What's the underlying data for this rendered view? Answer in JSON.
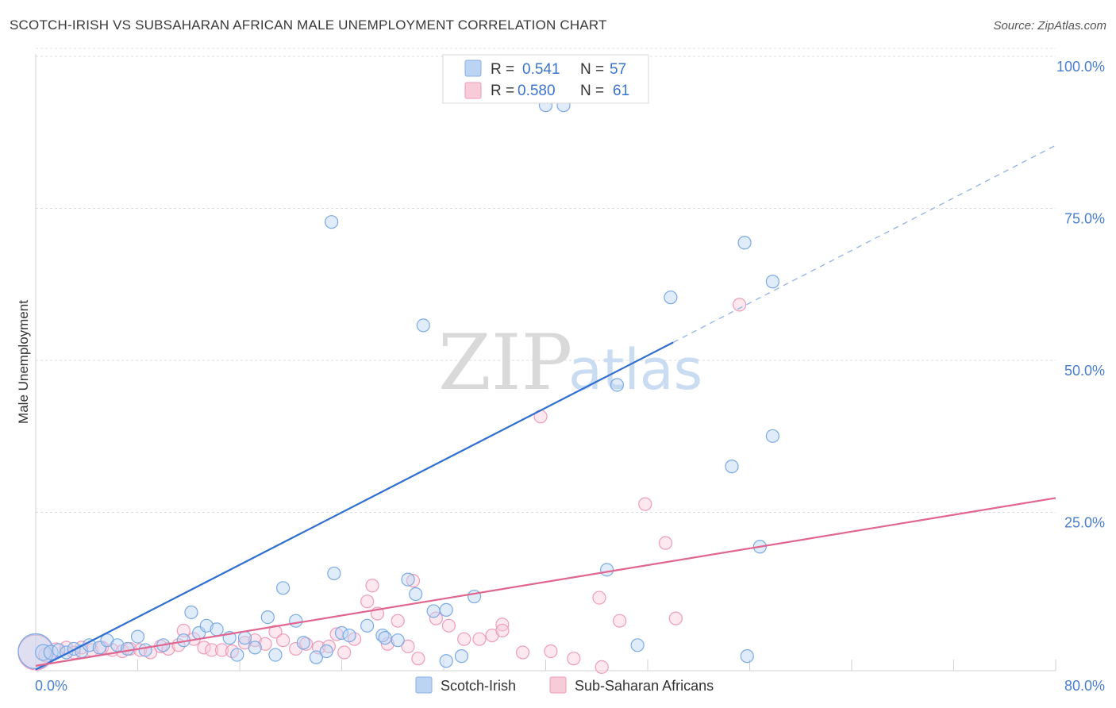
{
  "header": {
    "title": "SCOTCH-IRISH VS SUBSAHARAN AFRICAN MALE UNEMPLOYMENT CORRELATION CHART",
    "source": "Source: ZipAtlas.com"
  },
  "watermark": {
    "zip": "ZIP",
    "atlas": "atlas"
  },
  "legend": {
    "rows": [
      {
        "r_label": "R =",
        "r_value": "0.541",
        "n_label": "N =",
        "n_value": "57",
        "color": "#a9c8ef"
      },
      {
        "r_label": "R =",
        "r_value": "0.580",
        "n_label": "N =",
        "n_value": "61",
        "color": "#f5b8cb"
      }
    ]
  },
  "bottom_legend": [
    {
      "label": "Scotch-Irish",
      "color": "#a9c8ef"
    },
    {
      "label": "Sub-Saharan Africans",
      "color": "#f5b8cb"
    }
  ],
  "chart_data": {
    "type": "scatter",
    "title": "SCOTCH-IRISH VS SUBSAHARAN AFRICAN MALE UNEMPLOYMENT CORRELATION CHART",
    "xlabel": "",
    "ylabel": "Male Unemployment",
    "xlim": [
      0,
      80
    ],
    "ylim": [
      0,
      100
    ],
    "x_tick_labels": [
      "0.0%",
      "80.0%"
    ],
    "y_ticks": [
      25,
      50,
      75,
      100
    ],
    "y_tick_labels": [
      "25.0%",
      "50.0%",
      "75.0%",
      "100.0%"
    ],
    "grid": true,
    "series": [
      {
        "name": "Scotch-Irish",
        "color": "#7aaae6",
        "trend": {
          "x0": 0,
          "y0": 0.2,
          "x1": 50,
          "y1": 54.0,
          "dash_to_x": 80,
          "dash_to_y": 86.4
        },
        "points": [
          [
            0.0,
            3.2,
            22
          ],
          [
            0.6,
            3.0,
            10
          ],
          [
            1.2,
            3.0,
            9
          ],
          [
            1.8,
            3.4,
            8
          ],
          [
            2.4,
            3.0,
            8
          ],
          [
            3.0,
            3.6,
            8
          ],
          [
            3.6,
            3.2,
            8
          ],
          [
            4.2,
            4.2,
            8
          ],
          [
            5.0,
            3.8,
            8
          ],
          [
            5.6,
            5.0,
            8
          ],
          [
            6.4,
            4.2,
            8
          ],
          [
            7.2,
            3.6,
            8
          ],
          [
            8.0,
            5.6,
            8
          ],
          [
            8.6,
            3.4,
            8
          ],
          [
            10.0,
            4.2,
            8
          ],
          [
            11.6,
            5.0,
            8
          ],
          [
            12.2,
            9.6,
            8
          ],
          [
            12.8,
            6.2,
            8
          ],
          [
            13.4,
            7.4,
            8
          ],
          [
            14.2,
            6.8,
            8
          ],
          [
            15.2,
            5.4,
            8
          ],
          [
            15.8,
            2.6,
            8
          ],
          [
            16.4,
            5.4,
            8
          ],
          [
            17.2,
            3.8,
            8
          ],
          [
            18.2,
            8.8,
            8
          ],
          [
            18.8,
            2.6,
            8
          ],
          [
            19.4,
            13.6,
            8
          ],
          [
            20.4,
            8.2,
            8
          ],
          [
            21.0,
            4.6,
            8
          ],
          [
            22.0,
            2.2,
            8
          ],
          [
            22.8,
            3.2,
            8
          ],
          [
            23.4,
            16.0,
            8
          ],
          [
            24.0,
            6.2,
            8
          ],
          [
            24.6,
            5.8,
            8
          ],
          [
            26.0,
            7.4,
            8
          ],
          [
            27.2,
            5.8,
            8
          ],
          [
            27.4,
            5.4,
            8
          ],
          [
            28.4,
            5.0,
            8
          ],
          [
            29.2,
            15.0,
            8
          ],
          [
            29.8,
            12.6,
            8
          ],
          [
            31.2,
            9.8,
            8
          ],
          [
            32.2,
            10.0,
            8
          ],
          [
            34.4,
            12.2,
            8
          ],
          [
            30.4,
            56.8,
            8
          ],
          [
            32.2,
            1.6,
            8
          ],
          [
            33.4,
            2.4,
            8
          ],
          [
            23.2,
            73.8,
            8
          ],
          [
            40.0,
            93.0,
            8
          ],
          [
            41.4,
            93.0,
            8
          ],
          [
            49.8,
            61.4,
            8
          ],
          [
            45.6,
            47.0,
            8
          ],
          [
            55.6,
            70.4,
            8
          ],
          [
            57.8,
            64.0,
            8
          ],
          [
            57.8,
            38.6,
            8
          ],
          [
            54.6,
            33.6,
            8
          ],
          [
            44.8,
            16.6,
            8
          ],
          [
            47.2,
            4.2,
            8
          ],
          [
            56.8,
            20.4,
            8
          ],
          [
            55.8,
            2.4,
            8
          ]
        ]
      },
      {
        "name": "Sub-Saharan Africans",
        "color": "#f29bb8",
        "trend": {
          "x0": 0,
          "y0": 0.8,
          "x1": 80,
          "y1": 28.4
        },
        "points": [
          [
            0.0,
            3.0,
            22
          ],
          [
            0.8,
            2.6,
            9
          ],
          [
            1.6,
            3.4,
            9
          ],
          [
            2.4,
            3.8,
            8
          ],
          [
            3.0,
            3.0,
            8
          ],
          [
            3.6,
            3.8,
            8
          ],
          [
            4.4,
            3.4,
            8
          ],
          [
            5.2,
            3.8,
            8
          ],
          [
            6.0,
            3.4,
            8
          ],
          [
            6.8,
            3.2,
            8
          ],
          [
            7.4,
            3.6,
            8
          ],
          [
            8.2,
            3.4,
            8
          ],
          [
            9.0,
            3.0,
            8
          ],
          [
            9.8,
            4.0,
            8
          ],
          [
            10.4,
            3.6,
            8
          ],
          [
            11.2,
            4.2,
            8
          ],
          [
            11.6,
            6.6,
            8
          ],
          [
            12.4,
            5.2,
            8
          ],
          [
            13.2,
            3.8,
            8
          ],
          [
            13.8,
            3.4,
            8
          ],
          [
            14.6,
            3.4,
            8
          ],
          [
            15.4,
            3.2,
            8
          ],
          [
            16.4,
            4.6,
            8
          ],
          [
            17.2,
            5.0,
            8
          ],
          [
            18.0,
            4.4,
            8
          ],
          [
            18.8,
            6.4,
            8
          ],
          [
            19.4,
            5.0,
            8
          ],
          [
            20.4,
            3.6,
            8
          ],
          [
            21.2,
            4.4,
            8
          ],
          [
            22.2,
            3.8,
            8
          ],
          [
            23.0,
            4.0,
            8
          ],
          [
            23.6,
            6.0,
            8
          ],
          [
            24.2,
            3.0,
            8
          ],
          [
            25.0,
            5.2,
            8
          ],
          [
            26.0,
            11.4,
            8
          ],
          [
            26.8,
            9.4,
            8
          ],
          [
            27.6,
            4.4,
            8
          ],
          [
            28.4,
            8.2,
            8
          ],
          [
            29.2,
            4.0,
            8
          ],
          [
            30.0,
            2.0,
            8
          ],
          [
            31.4,
            8.6,
            8
          ],
          [
            32.4,
            7.4,
            8
          ],
          [
            33.6,
            5.2,
            8
          ],
          [
            34.8,
            5.2,
            8
          ],
          [
            35.8,
            5.8,
            8
          ],
          [
            36.6,
            7.6,
            8
          ],
          [
            39.6,
            41.8,
            8
          ],
          [
            40.4,
            3.2,
            8
          ],
          [
            42.2,
            2.0,
            8
          ],
          [
            44.4,
            0.6,
            8
          ],
          [
            36.6,
            6.6,
            8
          ],
          [
            44.2,
            12.0,
            8
          ],
          [
            47.8,
            27.4,
            8
          ],
          [
            49.4,
            21.0,
            8
          ],
          [
            50.2,
            8.6,
            8
          ],
          [
            55.2,
            60.2,
            8
          ],
          [
            45.8,
            8.2,
            8
          ],
          [
            38.2,
            3.0,
            8
          ],
          [
            26.4,
            14.0,
            8
          ],
          [
            29.6,
            14.8,
            8
          ]
        ]
      }
    ]
  }
}
